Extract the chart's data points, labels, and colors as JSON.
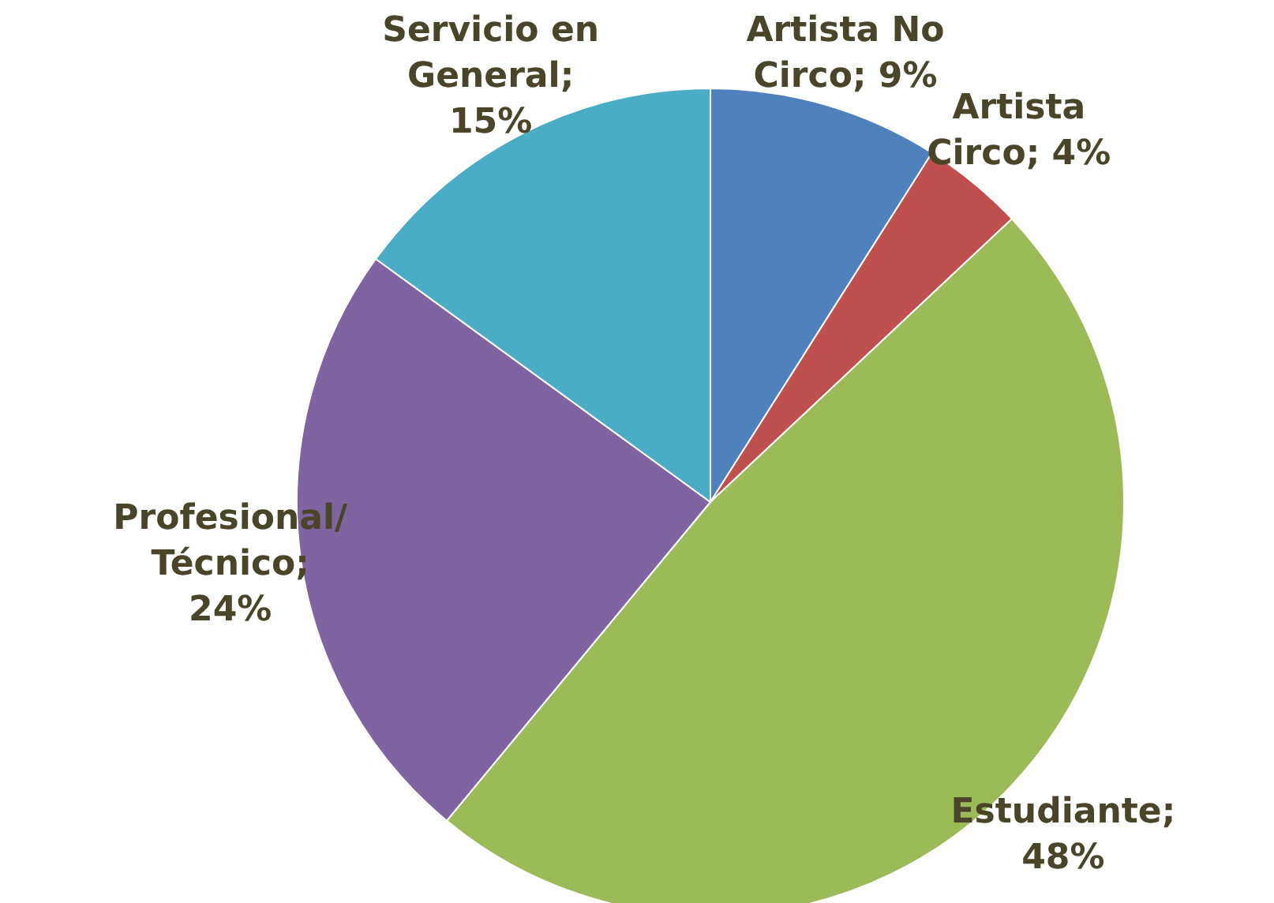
{
  "chart_data": {
    "type": "pie",
    "categories": [
      "Artista No Circo",
      "Artista Circo",
      "Estudiante",
      "Profesional/Técnico",
      "Servicio en General"
    ],
    "values": [
      9,
      4,
      48,
      24,
      15
    ],
    "value_labels": [
      "; 9%",
      "; 4%",
      "; 48%",
      "; 24%",
      "; 15%"
    ],
    "colors": [
      "#4f81bd",
      "#c0504d",
      "#9bbb59",
      "#8064a2",
      "#4bacc6"
    ]
  }
}
